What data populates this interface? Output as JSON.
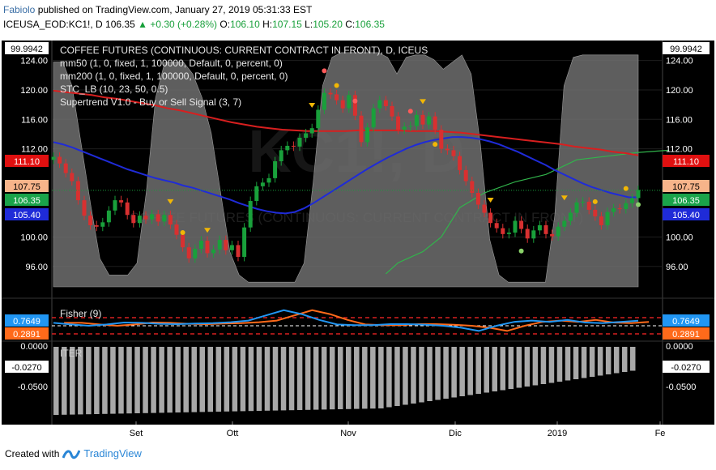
{
  "header": {
    "author": "Fabiolo",
    "published": "published on TradingView.com, January 27, 2019 05:31:33 EST",
    "symbol": "ICEUSA_EOD:KC1!, D",
    "last": "106.35",
    "change": "+0.30 (+0.28%)",
    "o_label": "O:",
    "o": "106.10",
    "h_label": "H:",
    "h": "107.15",
    "l_label": "L:",
    "l": "105.20",
    "c_label": "C:",
    "c": "106.35"
  },
  "legend": {
    "title": "COFFEE FUTURES (CONTINUOUS: CURRENT CONTRACT IN FRONT), D, ICEUS",
    "mm50": "mm50 (1, 0, fixed, 1, 100000, Default, 0, percent, 0)",
    "mm200": "mm200 (1, 0, fixed, 1, 100000, Default, 0, percent, 0)",
    "stc": "STC_LB (10, 23, 50, 0.5)",
    "supertrend": "Supertrend V1.0 - Buy or Sell Signal (3, 7)"
  },
  "watermark": {
    "big": "KC1!, D",
    "sub": "COFFEE FUTURES (CONTINUOUS: CURRENT CONTRACT IN FRONT)"
  },
  "colors": {
    "background": "#000000",
    "grid": "#1e1e1e",
    "up": "#19a03b",
    "down": "#d83030",
    "mm50": "#1f2bd8",
    "mm200": "#d81f1f",
    "stc_fill": "#6e6e6e",
    "fisher1": "#2196f3",
    "fisher2": "#ff6a1a",
    "iter": "#a8a8a8",
    "supertrend_up": "#31b44b",
    "supertrend_dn": "#c08060"
  },
  "chart_data": [
    {
      "type": "candlestick",
      "title": "COFFEE FUTURES (CONTINUOUS: CURRENT CONTRACT IN FRONT), D, ICEUS",
      "ylim": [
        93.0,
        126.5
      ],
      "y_ticks": [
        "124.00",
        "120.00",
        "116.00",
        "112.00",
        "100.00",
        "96.00"
      ],
      "x_ticks": [
        "Set",
        "Ott",
        "Nov",
        "Dic",
        "2019",
        "Fe"
      ],
      "price_labels": [
        {
          "text": "99.9942",
          "style": "white"
        },
        {
          "text": "111.10",
          "style": "red"
        },
        {
          "text": "107.75",
          "style": "peach"
        },
        {
          "text": "106.35",
          "style": "green"
        },
        {
          "text": "105.40",
          "style": "blue"
        }
      ],
      "close": [
        110.9,
        110.0,
        108.7,
        107.6,
        105.0,
        102.9,
        101.6,
        101.4,
        102.0,
        103.6,
        105.0,
        104.7,
        103.0,
        101.9,
        102.9,
        102.4,
        103.1,
        102.1,
        103.0,
        101.7,
        100.3,
        98.6,
        97.1,
        98.4,
        99.5,
        97.8,
        98.3,
        99.6,
        98.2,
        98.9,
        97.3,
        101.3,
        104.9,
        106.9,
        107.4,
        108.0,
        110.3,
        111.8,
        112.4,
        112.3,
        113.5,
        114.1,
        114.8,
        117.3,
        119.6,
        119.4,
        118.6,
        117.5,
        119.3,
        116.5,
        112.9,
        114.9,
        117.5,
        118.6,
        117.8,
        116.4,
        114.6,
        115.0,
        115.1,
        116.6,
        115.3,
        116.4,
        114.6,
        112.0,
        111.8,
        111.0,
        109.1,
        107.6,
        106.0,
        104.4,
        103.3,
        101.9,
        101.2,
        100.4,
        100.6,
        102.2,
        101.1,
        99.8,
        100.9,
        101.6,
        100.4,
        100.1,
        101.4,
        102.2,
        103.3,
        104.7,
        104.8,
        103.7,
        102.8,
        101.6,
        103.4,
        103.9,
        103.8,
        104.6,
        105.3,
        106.4
      ],
      "mm50": [
        112.9,
        112.6,
        112.2,
        111.7,
        111.2,
        110.7,
        110.2,
        109.7,
        109.2,
        108.8,
        108.4,
        108.0,
        107.7,
        107.4,
        107.0,
        106.7,
        106.3,
        105.9,
        105.5,
        105.1,
        104.6,
        104.2,
        103.8,
        103.5,
        103.3,
        103.2,
        103.4,
        103.9,
        104.6,
        105.4,
        106.2,
        107.0,
        107.8,
        108.6,
        109.4,
        110.1,
        110.8,
        111.4,
        112.0,
        112.5,
        112.9,
        113.2,
        113.4,
        113.6,
        113.6,
        113.5,
        113.3,
        113.0,
        112.6,
        112.1,
        111.6,
        111.0,
        110.4,
        109.8,
        109.1,
        108.5,
        107.9,
        107.3,
        106.8,
        106.4,
        106.0,
        105.7,
        105.4,
        105.4
      ],
      "mm200": [
        119.9,
        119.7,
        119.5,
        119.3,
        119.0,
        118.8,
        118.5,
        118.2,
        117.9,
        117.5,
        117.2,
        116.8,
        116.4,
        116.0,
        115.6,
        115.3,
        115.0,
        114.8,
        114.6,
        114.5,
        114.4,
        114.4,
        114.4,
        114.4,
        114.5,
        114.5,
        114.5,
        114.5,
        114.4,
        114.4,
        114.4,
        114.3,
        114.2,
        114.0,
        113.8,
        113.6,
        113.4,
        113.2,
        113.0,
        112.8,
        112.6,
        112.3,
        112.1,
        111.9,
        111.6,
        111.4,
        111.1
      ],
      "stc": [
        0.95,
        0.95,
        0.85,
        0.6,
        0.35,
        0.12,
        0.05,
        0.05,
        0.05,
        0.1,
        0.4,
        0.8,
        0.95,
        0.95,
        0.95,
        0.9,
        0.8,
        0.65,
        0.4,
        0.15,
        0.05,
        0.02,
        0.02,
        0.02,
        0.02,
        0.02,
        0.02,
        0.1,
        0.45,
        0.85,
        0.97,
        0.99,
        0.99,
        0.99,
        0.99,
        0.99,
        0.97,
        0.9,
        0.97,
        0.98,
        0.98,
        0.96,
        0.92,
        0.95,
        0.98,
        0.9,
        0.6,
        0.2,
        0.05,
        0.02,
        0.02,
        0.02,
        0.02,
        0.02,
        0.3,
        0.85,
        0.97,
        0.98,
        0.98,
        0.98,
        0.98,
        0.98,
        0.98,
        0.98
      ],
      "supertrend_up": [
        [
          54,
          95.0
        ],
        [
          56,
          96.5
        ],
        [
          60,
          98.0
        ],
        [
          63,
          100.0
        ],
        [
          66,
          104.0
        ],
        [
          70,
          106.0
        ],
        [
          75,
          107.5
        ],
        [
          80,
          108.5
        ],
        [
          85,
          110.5
        ],
        [
          90,
          111.0
        ],
        [
          95,
          111.5
        ],
        [
          100,
          111.8
        ]
      ]
    },
    {
      "type": "line",
      "title": "Fisher (9)",
      "series": [
        {
          "name": "Fisher (9)"
        }
      ],
      "price_labels": [
        "0.7649",
        "0.2891"
      ]
    },
    {
      "type": "bar",
      "title": "ITER",
      "y_ticks": [
        "0.0000",
        "-0.0270",
        "-0.0500"
      ],
      "price_labels": [
        "0.0000",
        "-0.0270"
      ]
    }
  ],
  "footer": {
    "created": "Created with",
    "brand": "TradingView"
  }
}
